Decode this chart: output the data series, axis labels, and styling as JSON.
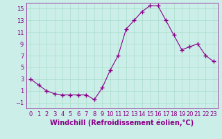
{
  "x": [
    0,
    1,
    2,
    3,
    4,
    5,
    6,
    7,
    8,
    9,
    10,
    11,
    12,
    13,
    14,
    15,
    16,
    17,
    18,
    19,
    20,
    21,
    22,
    23
  ],
  "y": [
    3,
    2,
    1,
    0.5,
    0.3,
    0.3,
    0.3,
    0.3,
    -0.5,
    1.5,
    4.5,
    7,
    11.5,
    13,
    14.5,
    15.5,
    15.5,
    13,
    10.5,
    8,
    8.5,
    9,
    7,
    6
  ],
  "line_color": "#880088",
  "marker": "+",
  "marker_size": 4,
  "marker_linewidth": 1.0,
  "bg_color": "#cceee8",
  "grid_color": "#aaddcc",
  "xlabel": "Windchill (Refroidissement éolien,°C)",
  "xlabel_color": "#880088",
  "xlabel_fontsize": 7,
  "tick_color": "#880088",
  "tick_labelsize": 6,
  "ylim": [
    -2,
    16
  ],
  "xlim": [
    -0.5,
    23.5
  ],
  "yticks": [
    -1,
    1,
    3,
    5,
    7,
    9,
    11,
    13,
    15
  ],
  "xticks": [
    0,
    1,
    2,
    3,
    4,
    5,
    6,
    7,
    8,
    9,
    10,
    11,
    12,
    13,
    14,
    15,
    16,
    17,
    18,
    19,
    20,
    21,
    22,
    23
  ],
  "linewidth": 0.8
}
